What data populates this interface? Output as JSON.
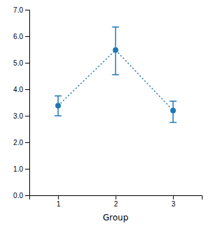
{
  "chart_data": {
    "type": "errorbar",
    "x": [
      1,
      2,
      3
    ],
    "values": [
      3.38,
      5.48,
      3.2
    ],
    "ci_lower": [
      3.0,
      4.55,
      2.75
    ],
    "ci_upper": [
      3.75,
      6.35,
      3.55
    ],
    "xlabel": "Group",
    "xlim": [
      0.5,
      3.5
    ],
    "xticks": [
      1,
      2,
      3
    ],
    "ylim": [
      0.0,
      7.0
    ],
    "yticks": [
      {
        "value": 0.0,
        "label": "0.0"
      },
      {
        "value": 1.0,
        "label": "1.0"
      },
      {
        "value": 2.0,
        "label": "2.0"
      },
      {
        "value": 3.0,
        "label": "3.0"
      },
      {
        "value": 4.0,
        "label": "4.0"
      },
      {
        "value": 5.0,
        "label": "5.0"
      },
      {
        "value": 6.0,
        "label": "6.0"
      },
      {
        "value": 7.0,
        "label": "7.0"
      }
    ],
    "line_style": "dotted",
    "marker": "circle"
  }
}
